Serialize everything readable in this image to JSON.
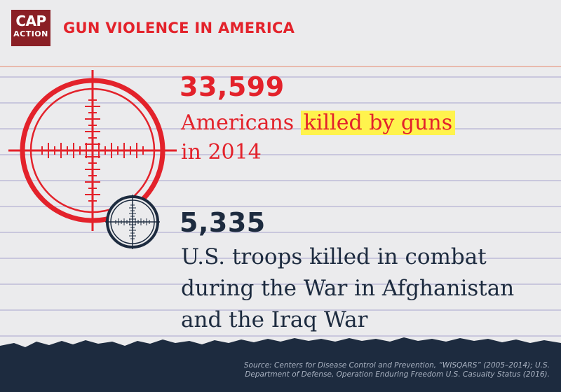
{
  "header": {
    "logo_line1": "CAP",
    "logo_line2": "ACTION",
    "title": "GUN VIOLENCE IN AMERICA"
  },
  "stat1": {
    "number": "33,599",
    "text_before": "Americans ",
    "text_highlight": "killed by guns",
    "text_line2": "in 2014"
  },
  "stat2": {
    "number": "5,335",
    "line1": "U.S. troops killed in combat",
    "line2": "during the War in Afghanistan",
    "line3": "and the Iraq War"
  },
  "source": "Source: Centers for Disease Control and Prevention, “WISQARS” (2005–2014); U.S. Department of Defense, Operation Enduring Freedom U.S. Casualty Status (2016).",
  "colors": {
    "accent_red": "#e3222b",
    "navy": "#1d2b3f",
    "highlight": "#fff34d",
    "logo_bg": "#8a1f25",
    "paper": "#ebebed"
  },
  "icons": [
    "large-crosshair-icon",
    "small-crosshair-icon"
  ]
}
